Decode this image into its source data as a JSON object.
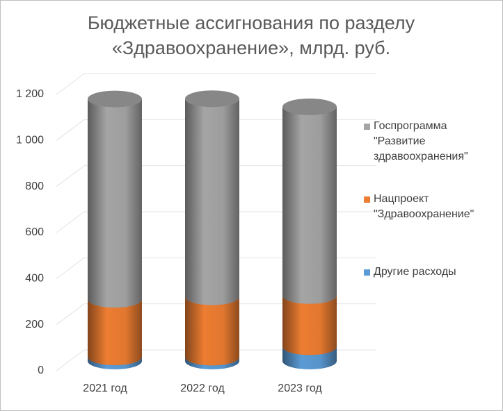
{
  "chart_data": {
    "type": "cylinder-stacked",
    "title": "Бюджетные ассигнования по разделу «Здравоохранение», млрд. руб.",
    "categories": [
      "2021 год",
      "2022 год",
      "2023 год"
    ],
    "series": [
      {
        "name": "Госпрограмма \"Развитие здравоохранения\"",
        "color": "#a5a5a5",
        "values": [
          870,
          860,
          820
        ]
      },
      {
        "name": "Нацпроект \"Здравоохранение\"",
        "color": "#ed7d31",
        "values": [
          250,
          262,
          222
        ]
      },
      {
        "name": "Другие расходы",
        "color": "#5b9bd5",
        "values": [
          18,
          17,
          62
        ]
      }
    ],
    "ylim": [
      0,
      1200
    ],
    "yticks": [
      0,
      200,
      400,
      600,
      800,
      {
        "value": 1000,
        "label": "1 000"
      },
      {
        "value": 1200,
        "label": "1 200"
      }
    ],
    "grid": true,
    "legend": "right"
  }
}
